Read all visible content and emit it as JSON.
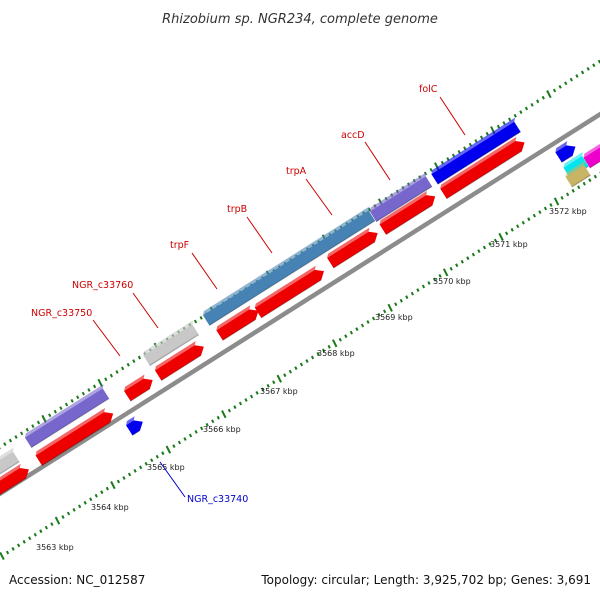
{
  "title": "Rhizobium sp. NGR234, complete genome",
  "footer": {
    "accession": "Accession: NC_012587",
    "topology": "Topology: circular; Length: 3,925,702 bp; Genes: 3,691"
  },
  "kbp_labels": [
    {
      "pos": 3563,
      "text": "3563 kbp"
    },
    {
      "pos": 3564,
      "text": "3564 kbp"
    },
    {
      "pos": 3565,
      "text": "3565 kbp"
    },
    {
      "pos": 3566,
      "text": "3566 kbp"
    },
    {
      "pos": 3567,
      "text": "3567 kbp"
    },
    {
      "pos": 3568,
      "text": "3568 kbp"
    },
    {
      "pos": 3569,
      "text": "3569 kbp"
    },
    {
      "pos": 3570,
      "text": "3570 kbp"
    },
    {
      "pos": 3571,
      "text": "3571 kbp"
    },
    {
      "pos": 3572,
      "text": "3572 kbp"
    }
  ],
  "gene_labels": [
    {
      "id": "NGR_c33750",
      "text": "NGR_c33750",
      "color": "#cc0000"
    },
    {
      "id": "NGR_c33760",
      "text": "NGR_c33760",
      "color": "#cc0000"
    },
    {
      "id": "trpF",
      "text": "trpF",
      "color": "#cc0000"
    },
    {
      "id": "trpB",
      "text": "trpB",
      "color": "#cc0000"
    },
    {
      "id": "trpA",
      "text": "trpA",
      "color": "#cc0000"
    },
    {
      "id": "accD",
      "text": "accD",
      "color": "#cc0000"
    },
    {
      "id": "folC",
      "text": "folC",
      "color": "#cc0000"
    },
    {
      "id": "NGR_c33740",
      "text": "NGR_c33740",
      "color": "#0000cc"
    }
  ],
  "colors": {
    "cds": "#ee0000",
    "gene_forward": "#0000ee",
    "gene_purple": "#7766cc",
    "gene_steel": "#4682b4",
    "gene_grey": "#c8c8c8",
    "backbone": "#8c8c8c",
    "tick": "#1a7a1a"
  }
}
